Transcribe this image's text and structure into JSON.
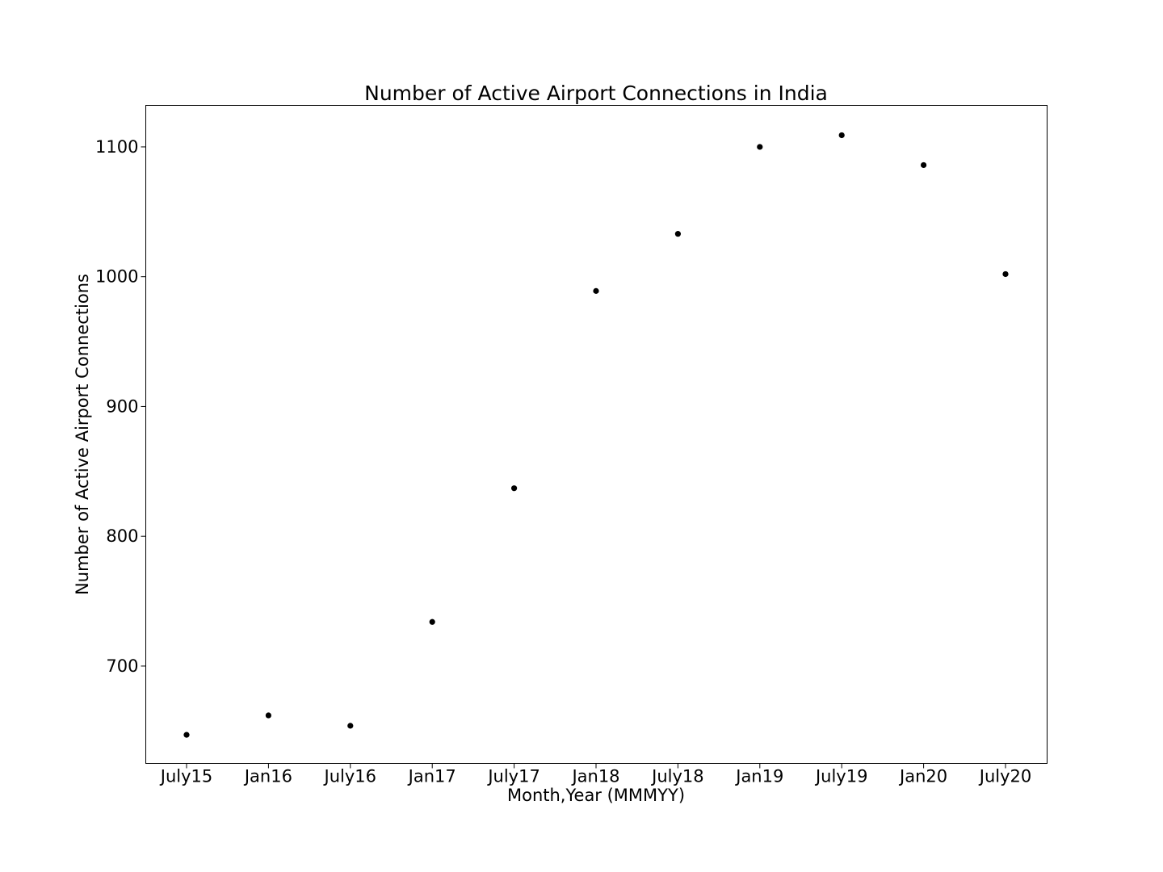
{
  "chart_data": {
    "type": "scatter",
    "title": "Number of Active Airport Connections in India",
    "xlabel": "Month,Year (MMMYY)",
    "ylabel": "Number of Active Airport Connections",
    "categories": [
      "July15",
      "Jan16",
      "July16",
      "Jan17",
      "July17",
      "Jan18",
      "July18",
      "Jan19",
      "July19",
      "Jan20",
      "July20"
    ],
    "values": [
      647,
      662,
      654,
      734,
      837,
      989,
      1033,
      1100,
      1109,
      1086,
      1002
    ],
    "ylim": [
      625,
      1132
    ],
    "yticks": [
      700,
      800,
      900,
      1000,
      1100
    ],
    "grid": false,
    "marker_color": "#000000"
  }
}
